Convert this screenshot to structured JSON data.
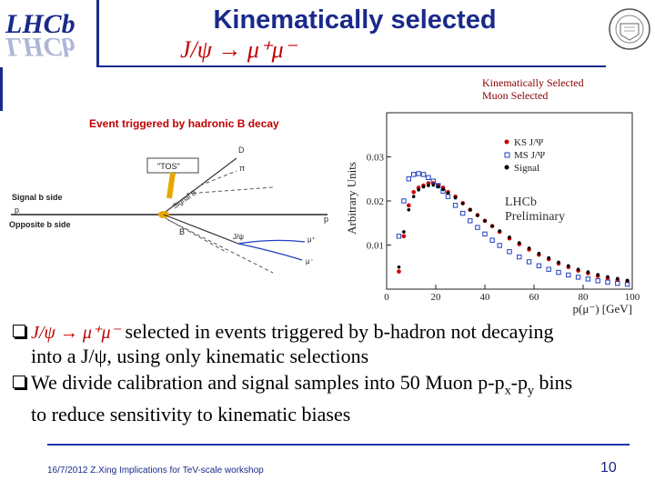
{
  "slide": {
    "title": "Kinematically selected",
    "formula": "J/ψ → μ⁺μ⁻",
    "logo_text_top": "LHCb",
    "logo_text_bottom": "ΓHCb",
    "seal_text": "SYRACUSE UNIVERSITY FOUNDED 1870"
  },
  "legend_top": [
    "Kinematically Selected",
    "Muon Selected"
  ],
  "diagram": {
    "title": "Event triggered by hadronic B decay",
    "tos": "\"TOS\"",
    "D": "D",
    "pi": "π",
    "signal_b": "Signal B",
    "signal_b_side": "Signal b side",
    "opposite_b_side": "Opposite b side",
    "p_left": "p",
    "p_right": "p",
    "B": "B",
    "jpsi": "J/ψ",
    "mu_plus": "μ⁺",
    "mu_minus": "μ⁻"
  },
  "chart_data": {
    "type": "scatter",
    "ylabel": "Arbitrary Units",
    "xlabel": "p(μ⁻) [GeV]",
    "xlim": [
      0,
      100
    ],
    "ylim": [
      0,
      0.04
    ],
    "xticks": [
      "0",
      "20",
      "40",
      "60",
      "80",
      "100"
    ],
    "yticks": [
      "0.01",
      "0.02",
      "0.03"
    ],
    "annotation": [
      "LHCb",
      "Preliminary"
    ],
    "series": [
      {
        "name": "KS J/Ψ",
        "color": "#cc0000",
        "marker": "circle",
        "x": [
          5,
          7,
          9,
          11,
          13,
          15,
          17,
          19,
          21,
          23,
          25,
          28,
          31,
          34,
          37,
          40,
          43,
          46,
          50,
          54,
          58,
          62,
          66,
          70,
          74,
          78,
          82,
          86,
          90,
          94,
          98
        ],
        "y": [
          0.004,
          0.012,
          0.019,
          0.022,
          0.023,
          0.0235,
          0.024,
          0.024,
          0.0235,
          0.023,
          0.022,
          0.021,
          0.0195,
          0.018,
          0.0168,
          0.0155,
          0.0143,
          0.013,
          0.0115,
          0.0102,
          0.009,
          0.0078,
          0.0068,
          0.0058,
          0.005,
          0.0042,
          0.0036,
          0.003,
          0.0025,
          0.0021,
          0.0018
        ]
      },
      {
        "name": "MS J/Ψ",
        "color": "#2040c0",
        "marker": "square",
        "x": [
          5,
          7,
          9,
          11,
          13,
          15,
          17,
          19,
          21,
          23,
          25,
          28,
          31,
          34,
          37,
          40,
          43,
          46,
          50,
          54,
          58,
          62,
          66,
          70,
          74,
          78,
          82,
          86,
          90,
          94,
          98
        ],
        "y": [
          0.012,
          0.02,
          0.025,
          0.026,
          0.0262,
          0.026,
          0.0253,
          0.0245,
          0.0235,
          0.0222,
          0.021,
          0.019,
          0.0172,
          0.0155,
          0.014,
          0.0125,
          0.0111,
          0.0099,
          0.0085,
          0.0073,
          0.0062,
          0.0053,
          0.0045,
          0.0038,
          0.0032,
          0.0027,
          0.0023,
          0.0019,
          0.0016,
          0.0013,
          0.0011
        ]
      },
      {
        "name": "Signal",
        "color": "#000000",
        "marker": "circle",
        "x": [
          5,
          7,
          9,
          11,
          13,
          15,
          17,
          19,
          21,
          23,
          25,
          28,
          31,
          34,
          37,
          40,
          43,
          46,
          50,
          54,
          58,
          62,
          66,
          70,
          74,
          78,
          82,
          86,
          90,
          94,
          98
        ],
        "y": [
          0.005,
          0.013,
          0.018,
          0.021,
          0.0225,
          0.0232,
          0.0235,
          0.0236,
          0.0232,
          0.0226,
          0.0218,
          0.0207,
          0.0194,
          0.018,
          0.0167,
          0.0155,
          0.0143,
          0.0132,
          0.0118,
          0.0105,
          0.0093,
          0.0081,
          0.0071,
          0.0061,
          0.0053,
          0.0045,
          0.0039,
          0.0033,
          0.0028,
          0.0024,
          0.002
        ]
      }
    ]
  },
  "bullets": {
    "b1_formula": "J/ψ → μ⁺μ⁻",
    "b1_text1": "selected in events triggered by b-hadron not decaying",
    "b1_text2": "into a J/ψ, using only kinematic selections",
    "b2_text1a": "We divide calibration and signal samples into 50 Muon p-p",
    "b2_sub_x": "x",
    "b2_mid": "-p",
    "b2_sub_y": "y",
    "b2_text1b": " bins",
    "b2_text2": "to reduce sensitivity to kinematic biases"
  },
  "footer": {
    "text": "16/7/2012 Z.Xing Implications for TeV-scale workshop",
    "page": "10"
  },
  "colors": {
    "accent": "#1a2a8a",
    "formula": "#c00000",
    "diagram_title": "#c00000"
  }
}
